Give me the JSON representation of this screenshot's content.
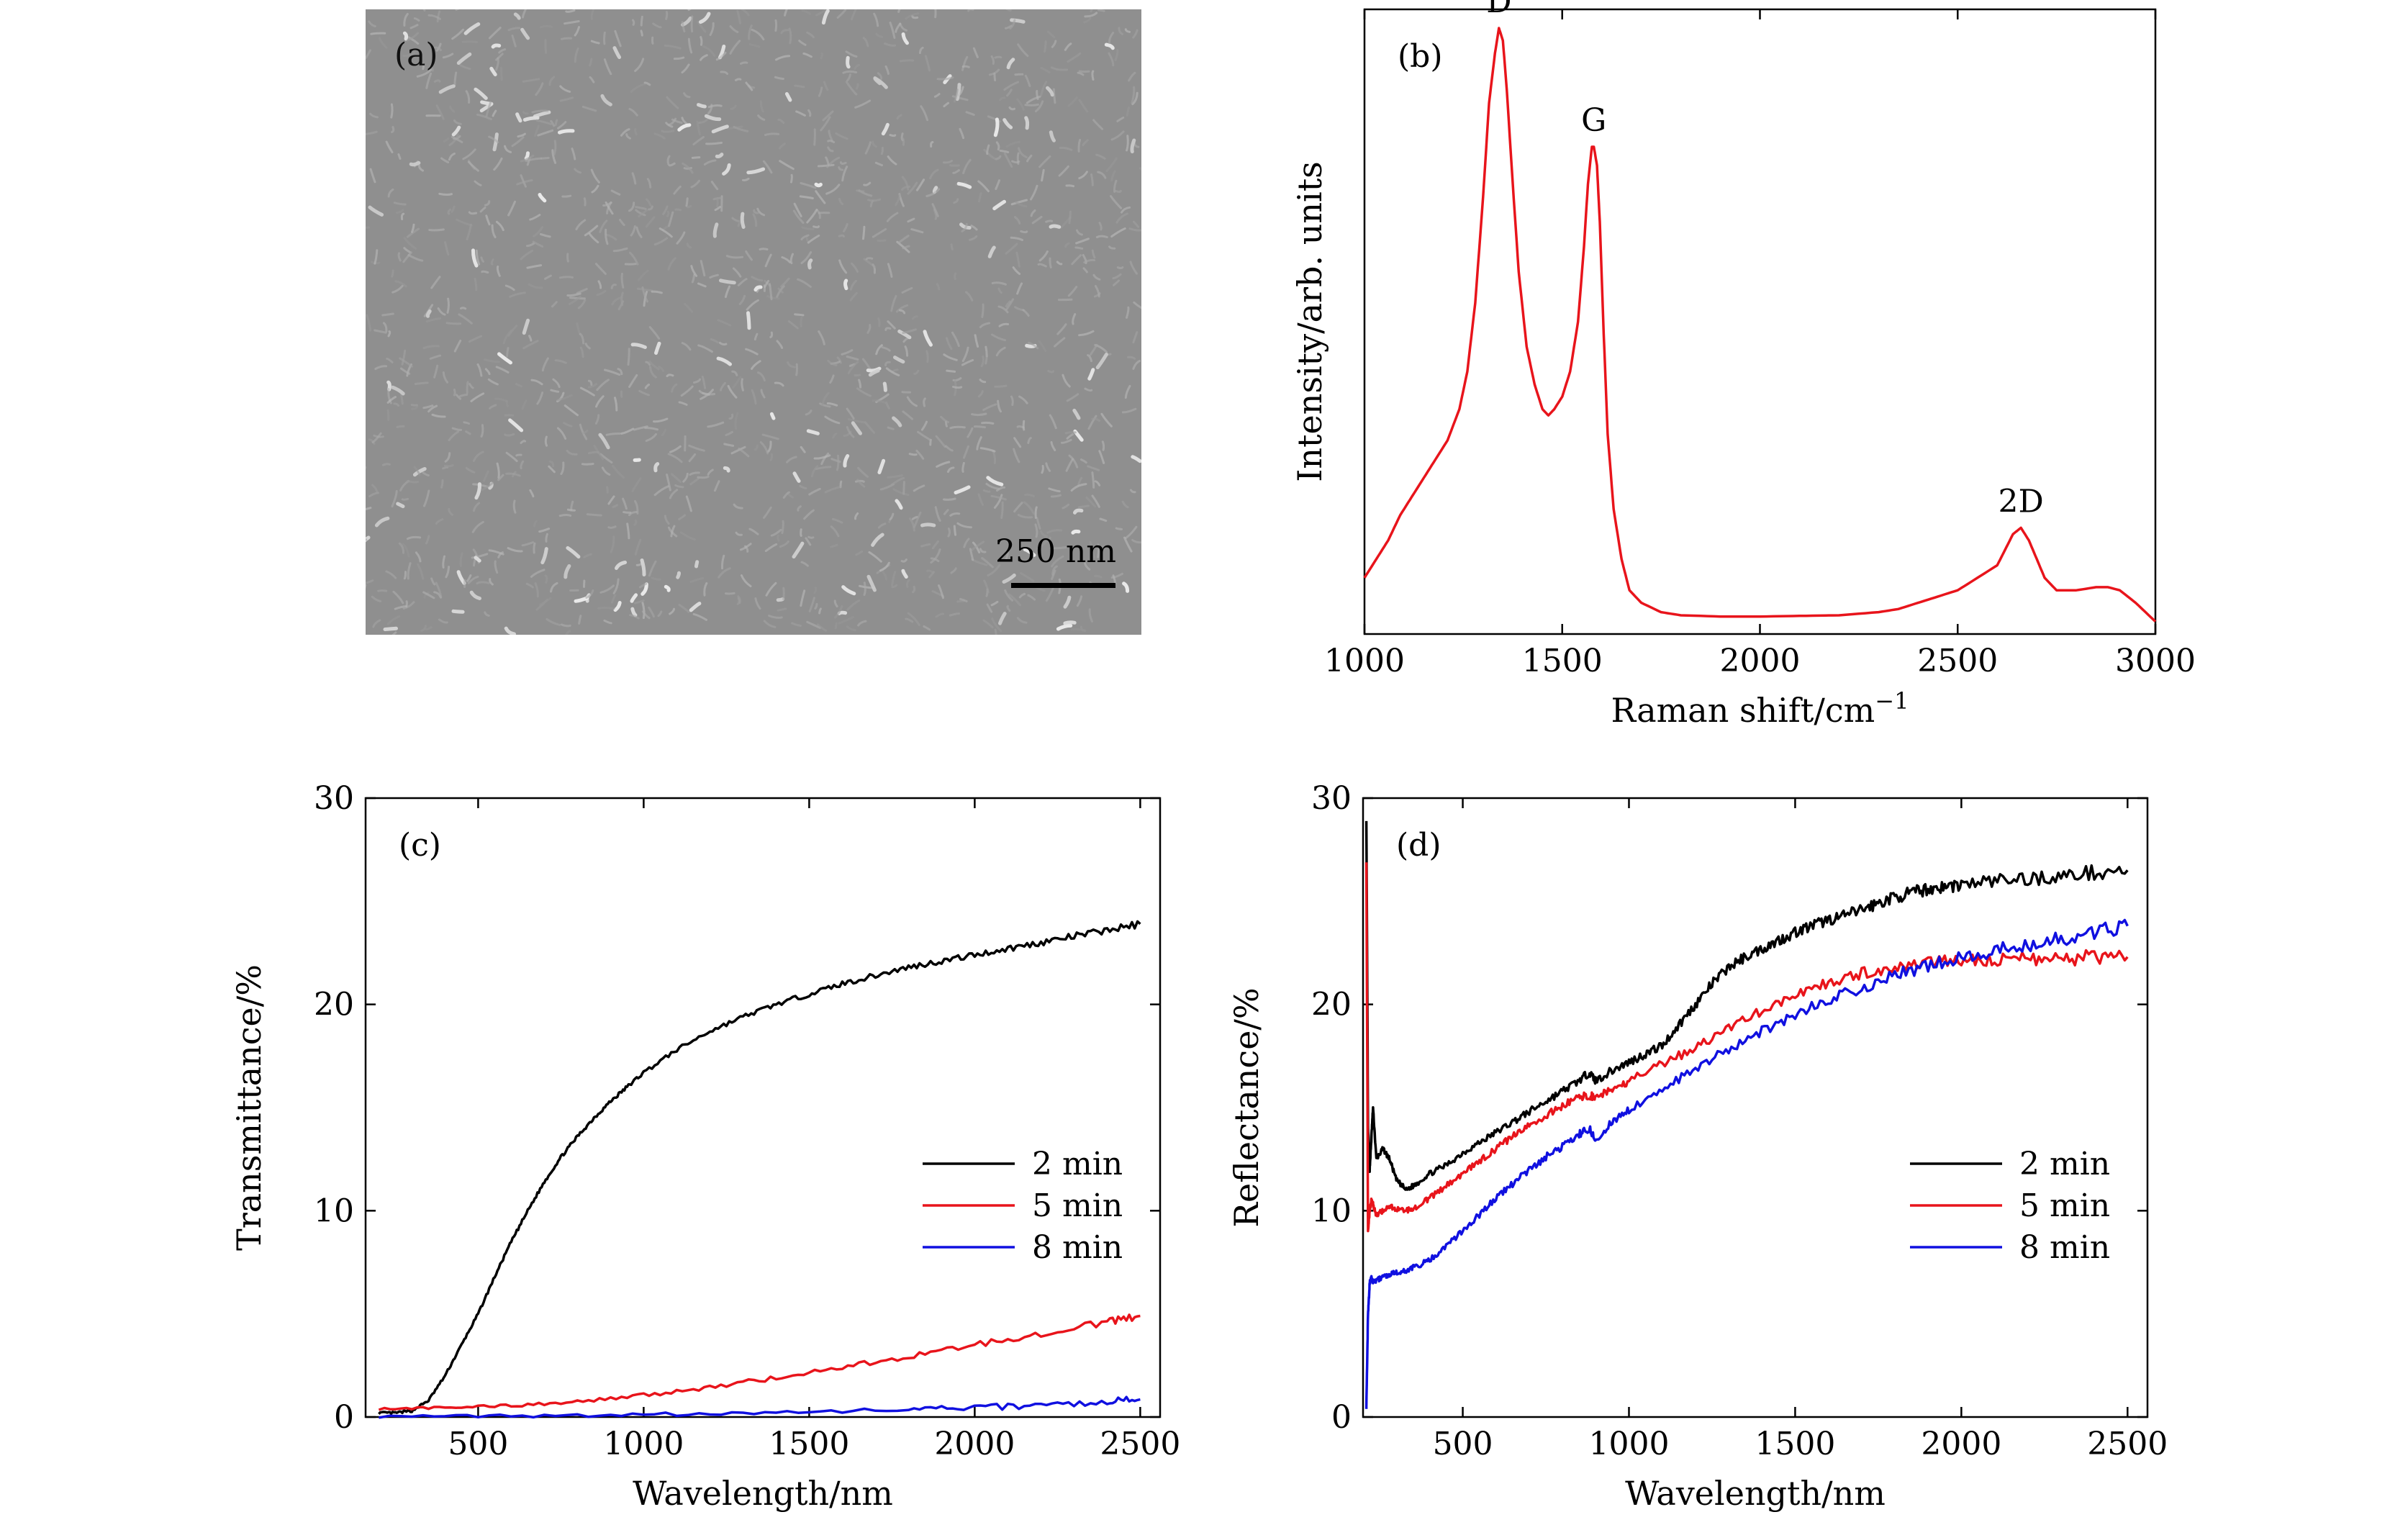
{
  "panels": {
    "a": {
      "label": "(a)",
      "scale_bar": "250 nm"
    }
  },
  "chart_data": [
    {
      "id": "b",
      "label": "(b)",
      "type": "line",
      "xlabel": "Raman shift/cm",
      "xlabel_sup": "−1",
      "ylabel": "Intensity/arb. units",
      "xlim": [
        1000,
        3000
      ],
      "ylim": [
        0,
        100
      ],
      "xticks": [
        1000,
        1500,
        2000,
        2500,
        3000
      ],
      "yticks": [],
      "grid": false,
      "peaks": [
        {
          "text": "D",
          "x": 1340,
          "y": 97
        },
        {
          "text": "G",
          "x": 1580,
          "y": 78
        },
        {
          "text": "2D",
          "x": 2660,
          "y": 17
        }
      ],
      "series": [
        {
          "color": "#e8141b",
          "x": [
            1000,
            1030,
            1060,
            1090,
            1120,
            1150,
            1180,
            1210,
            1240,
            1260,
            1280,
            1300,
            1315,
            1330,
            1340,
            1350,
            1360,
            1375,
            1390,
            1410,
            1430,
            1450,
            1465,
            1480,
            1500,
            1520,
            1540,
            1555,
            1565,
            1575,
            1580,
            1588,
            1595,
            1605,
            1615,
            1630,
            1650,
            1670,
            1700,
            1750,
            1800,
            1900,
            2000,
            2100,
            2200,
            2300,
            2350,
            2400,
            2450,
            2500,
            2550,
            2600,
            2620,
            2640,
            2660,
            2680,
            2700,
            2720,
            2750,
            2800,
            2850,
            2880,
            2910,
            2950,
            3000
          ],
          "y": [
            9,
            12,
            15,
            19,
            22,
            25,
            28,
            31,
            36,
            42,
            53,
            70,
            85,
            93,
            97,
            95,
            87,
            72,
            58,
            46,
            40,
            36,
            35,
            36,
            38,
            42,
            50,
            62,
            72,
            78,
            78,
            75,
            66,
            48,
            32,
            20,
            12,
            7,
            5,
            3.5,
            3,
            2.8,
            2.8,
            2.9,
            3,
            3.5,
            4,
            5,
            6,
            7,
            9,
            11,
            13.5,
            16,
            17,
            15,
            12,
            9,
            7,
            7,
            7.5,
            7.5,
            7,
            5,
            2
          ]
        }
      ]
    },
    {
      "id": "c",
      "label": "(c)",
      "type": "line",
      "xlabel": "Wavelength/nm",
      "ylabel": "Transmittance/%",
      "xlim": [
        160,
        2560
      ],
      "ylim": [
        0,
        30
      ],
      "xticks": [
        500,
        1000,
        1500,
        2000,
        2500
      ],
      "yticks": [
        0,
        10,
        20,
        30
      ],
      "grid": false,
      "legend": "center-right",
      "series": [
        {
          "name": "2 min",
          "color": "#000000",
          "x": [
            200,
            250,
            300,
            350,
            400,
            450,
            500,
            550,
            600,
            650,
            700,
            750,
            800,
            850,
            900,
            950,
            1000,
            1100,
            1200,
            1300,
            1400,
            1500,
            1600,
            1700,
            1800,
            1900,
            2000,
            2100,
            2200,
            2300,
            2400,
            2500
          ],
          "y": [
            0.2,
            0.2,
            0.3,
            0.8,
            2,
            3.5,
            5,
            6.8,
            8.5,
            10,
            11.4,
            12.6,
            13.6,
            14.5,
            15.3,
            16,
            16.7,
            17.8,
            18.7,
            19.4,
            20,
            20.5,
            21,
            21.4,
            21.8,
            22.1,
            22.4,
            22.7,
            23,
            23.3,
            23.6,
            23.9
          ]
        },
        {
          "name": "5 min",
          "color": "#e8141b",
          "x": [
            200,
            400,
            600,
            800,
            1000,
            1200,
            1400,
            1600,
            1800,
            2000,
            2200,
            2400,
            2500
          ],
          "y": [
            0.4,
            0.45,
            0.55,
            0.75,
            1.05,
            1.45,
            1.9,
            2.4,
            2.95,
            3.5,
            4.05,
            4.6,
            4.9
          ]
        },
        {
          "name": "8 min",
          "color": "#1010e0",
          "x": [
            200,
            600,
            1000,
            1400,
            1800,
            2000,
            2200,
            2400,
            2500
          ],
          "y": [
            0.02,
            0.05,
            0.12,
            0.22,
            0.35,
            0.45,
            0.55,
            0.75,
            0.85
          ]
        }
      ]
    },
    {
      "id": "d",
      "label": "(d)",
      "type": "line",
      "xlabel": "Wavelength/nm",
      "ylabel": "Reflectance/%",
      "xlim": [
        200,
        2560
      ],
      "ylim": [
        0,
        30
      ],
      "xticks": [
        500,
        1000,
        1500,
        2000,
        2500
      ],
      "yticks": [
        0,
        10,
        20,
        30
      ],
      "grid": false,
      "legend": "center-right",
      "series": [
        {
          "name": "2 min",
          "color": "#000000",
          "x": [
            210,
            215,
            220,
            225,
            230,
            240,
            260,
            280,
            300,
            330,
            360,
            400,
            450,
            500,
            550,
            600,
            650,
            700,
            750,
            800,
            850,
            880,
            900,
            950,
            1000,
            1050,
            1100,
            1150,
            1200,
            1250,
            1300,
            1350,
            1400,
            1450,
            1500,
            1550,
            1600,
            1650,
            1700,
            1750,
            1800,
            1850,
            1900,
            1950,
            2000,
            2100,
            2200,
            2300,
            2400,
            2500
          ],
          "y": [
            29,
            14,
            12,
            13.5,
            15,
            12.5,
            13,
            12.5,
            11.5,
            11,
            11.3,
            11.8,
            12.2,
            12.8,
            13.3,
            13.8,
            14.3,
            14.8,
            15.3,
            15.8,
            16.3,
            16.7,
            16.3,
            16.8,
            17.2,
            17.6,
            18,
            19,
            20,
            21,
            21.8,
            22.3,
            22.7,
            23.1,
            23.5,
            23.8,
            24.1,
            24.3,
            24.6,
            24.9,
            25.2,
            25.4,
            25.6,
            25.7,
            25.8,
            26,
            26.1,
            26.2,
            26.4,
            26.5
          ]
        },
        {
          "name": "5 min",
          "color": "#e8141b",
          "x": [
            210,
            215,
            220,
            225,
            230,
            240,
            260,
            280,
            300,
            330,
            360,
            400,
            450,
            500,
            550,
            600,
            650,
            700,
            750,
            800,
            850,
            880,
            900,
            950,
            1000,
            1100,
            1200,
            1300,
            1400,
            1500,
            1600,
            1700,
            1800,
            1900,
            2000,
            2100,
            2200,
            2300,
            2400,
            2500
          ],
          "y": [
            27,
            9,
            10,
            10.5,
            10.3,
            9.8,
            10,
            10.2,
            10.1,
            10,
            10.2,
            10.6,
            11.2,
            11.8,
            12.4,
            13,
            13.6,
            14.1,
            14.6,
            15.1,
            15.5,
            15.6,
            15.5,
            15.9,
            16.3,
            17.1,
            17.9,
            18.8,
            19.7,
            20.5,
            21.1,
            21.5,
            21.8,
            22,
            22.1,
            22.2,
            22.2,
            22.2,
            22.3,
            22.3
          ]
        },
        {
          "name": "8 min",
          "color": "#1010e0",
          "x": [
            210,
            215,
            220,
            225,
            230,
            240,
            260,
            280,
            300,
            330,
            360,
            400,
            450,
            500,
            550,
            600,
            650,
            700,
            750,
            800,
            850,
            880,
            900,
            950,
            1000,
            1100,
            1200,
            1300,
            1400,
            1500,
            1600,
            1700,
            1800,
            1900,
            2000,
            2100,
            2200,
            2300,
            2400,
            2500
          ],
          "y": [
            0.5,
            5,
            6.5,
            6.8,
            6.5,
            6.6,
            6.8,
            6.9,
            7,
            7.1,
            7.3,
            7.6,
            8.3,
            9,
            9.8,
            10.6,
            11.3,
            12,
            12.6,
            13.1,
            13.7,
            14,
            13.5,
            14.3,
            14.9,
            15.9,
            16.9,
            17.8,
            18.7,
            19.5,
            20.2,
            20.8,
            21.4,
            21.9,
            22.3,
            22.6,
            22.9,
            23.2,
            23.5,
            23.8
          ]
        }
      ]
    }
  ]
}
